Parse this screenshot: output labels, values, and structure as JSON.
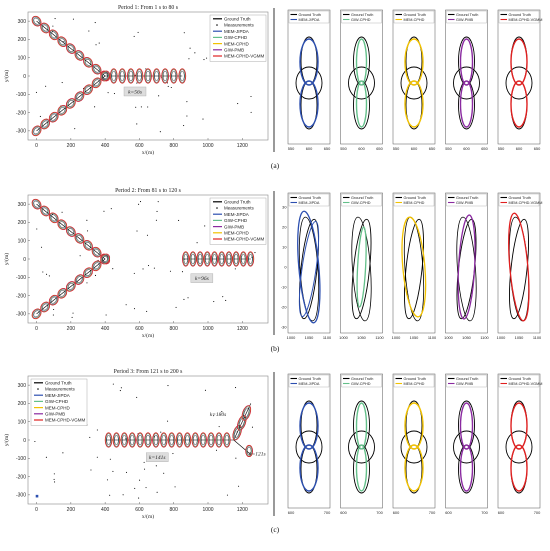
{
  "rows": [
    {
      "caption": "(a)",
      "main": {
        "title": "Period 1: From 1 s  to 80 s",
        "xlabel": "x/(m)",
        "ylabel": "y/(m)",
        "xticks": [
          0,
          200,
          400,
          600,
          800,
          1000,
          1200
        ],
        "yticks": [
          300,
          200,
          100,
          0,
          -100,
          -200,
          -300
        ],
        "legend": [
          "Ground Truth",
          "Measurements",
          "MEM-JIPDA",
          "GIW-CPHD",
          "MEM-CPHD",
          "GIW-PMB",
          "MEM-CPHD-VGMM"
        ],
        "annotations": [
          "k=56s"
        ]
      },
      "zoom_xticks": [
        "550",
        "600",
        "650"
      ],
      "zoom_yticks": [],
      "zooms": [
        {
          "legend": [
            "Ground Truth",
            "MEM-JIPDA"
          ]
        },
        {
          "legend": [
            "Ground Truth",
            "GIW-CPHD"
          ]
        },
        {
          "legend": [
            "Ground Truth",
            "MEM-CPHD"
          ]
        },
        {
          "legend": [
            "Ground Truth",
            "GIW-PMB"
          ]
        },
        {
          "legend": [
            "Ground Truth",
            "MEM-CPHD-VGMM"
          ]
        }
      ]
    },
    {
      "caption": "(b)",
      "main": {
        "title": "Period 2: From 81 s  to 120 s",
        "xlabel": "x/(m)",
        "ylabel": "y/(m)",
        "xticks": [
          0,
          200,
          400,
          600,
          800,
          1000,
          1200
        ],
        "yticks": [
          300,
          200,
          100,
          0,
          -100,
          -200,
          -300
        ],
        "legend": [
          "Ground Truth",
          "Measurements",
          "MEM-JIPDA",
          "GIW-CPHD",
          "GIW-PMB",
          "MEM-CPHD",
          "MEM-CPHD-VGMM"
        ],
        "annotations": [
          "k=96s"
        ]
      },
      "zoom_xticks": [
        "1000",
        "1050",
        "1100"
      ],
      "zoom_yticks": [
        "30",
        "20",
        "10",
        "0",
        "-10",
        "-20",
        "-30"
      ],
      "zooms": [
        {
          "legend": [
            "Ground Truth",
            "MEM-JIPDA"
          ]
        },
        {
          "legend": [
            "Ground Truth",
            "GIW-CPHD"
          ]
        },
        {
          "legend": [
            "Ground Truth",
            "MEM-CPHD"
          ]
        },
        {
          "legend": [
            "Ground Truth",
            "GIW-PMB"
          ]
        },
        {
          "legend": [
            "Ground Truth",
            "MEM-CPHD-VGMM"
          ]
        }
      ]
    },
    {
      "caption": "(c)",
      "main": {
        "title": "Period 3: From 121 s  to 200 s",
        "xlabel": "x/(m)",
        "ylabel": "y/(m)",
        "xticks": [
          0,
          200,
          400,
          600,
          800,
          1000,
          1200
        ],
        "yticks": [
          300,
          200,
          100,
          0,
          -100,
          -200,
          -300
        ],
        "legend": [
          "Ground Truth",
          "Measurements",
          "MEM-JIPDA",
          "GIW-CPHD",
          "MEM-CPHD",
          "GIW-PMB",
          "MEM-CPHD-VGMM"
        ],
        "annotations": [
          "k=180s",
          "k=141s",
          "k=121s"
        ]
      },
      "zoom_xticks": [
        "600",
        "700"
      ],
      "zoom_yticks": [],
      "zooms": [
        {
          "legend": [
            "Ground Truth",
            "MEM-JIPDA"
          ]
        },
        {
          "legend": [
            "Ground Truth",
            "GIW-CPHD"
          ]
        },
        {
          "legend": [
            "Ground Truth",
            "MEM-CPHD"
          ]
        },
        {
          "legend": [
            "Ground Truth",
            "GIW-PMB"
          ]
        },
        {
          "legend": [
            "Ground Truth",
            "MEM-CPHD-VGMM"
          ]
        }
      ]
    }
  ],
  "colors": {
    "ground_truth": "#000000",
    "measurements": "#000000",
    "mem_jipda": "#2c4fb0",
    "giw_cphd": "#64c08a",
    "mem_cphd": "#f2c200",
    "giw_pmb": "#8a2aa0",
    "mem_cphd_vgmm": "#e02020"
  },
  "chart_data": [
    {
      "type": "scatter",
      "title": "Period 1: From 1 s  to 80 s",
      "xlabel": "x/(m)",
      "ylabel": "y/(m)",
      "xlim": [
        -50,
        1350
      ],
      "ylim": [
        -350,
        350
      ],
      "series": [
        {
          "name": "Ground Truth",
          "x": [
            0,
            400,
            850
          ],
          "y": [
            300,
            0,
            0
          ]
        },
        {
          "name": "Ground Truth",
          "x": [
            0,
            400
          ],
          "y": [
            -300,
            0
          ]
        }
      ],
      "annotations": [
        "k=56s"
      ]
    },
    {
      "type": "scatter",
      "title": "Period 2: From 81 s  to 120 s",
      "xlabel": "x/(m)",
      "ylabel": "y/(m)",
      "xlim": [
        -50,
        1350
      ],
      "ylim": [
        -350,
        350
      ],
      "series": [
        {
          "name": "Ground Truth",
          "x": [
            0,
            400
          ],
          "y": [
            300,
            0
          ]
        },
        {
          "name": "Ground Truth",
          "x": [
            0,
            400
          ],
          "y": [
            -300,
            0
          ]
        },
        {
          "name": "Ground Truth",
          "x": [
            850,
            1250
          ],
          "y": [
            0,
            0
          ]
        }
      ],
      "annotations": [
        "k=96s"
      ]
    },
    {
      "type": "scatter",
      "title": "Period 3: From 121 s  to 200 s",
      "xlabel": "x/(m)",
      "ylabel": "y/(m)",
      "xlim": [
        -50,
        1350
      ],
      "ylim": [
        -350,
        350
      ],
      "series": [
        {
          "name": "Ground Truth",
          "x": [
            400,
            1150
          ],
          "y": [
            0,
            0
          ]
        },
        {
          "name": "Ground Truth",
          "x": [
            1150,
            1250
          ],
          "y": [
            0,
            200
          ]
        },
        {
          "name": "Ground Truth",
          "x": [
            1150,
            1250
          ],
          "y": [
            0,
            -80
          ]
        }
      ],
      "annotations": [
        "k=180s",
        "k=141s",
        "k=121s"
      ]
    }
  ]
}
